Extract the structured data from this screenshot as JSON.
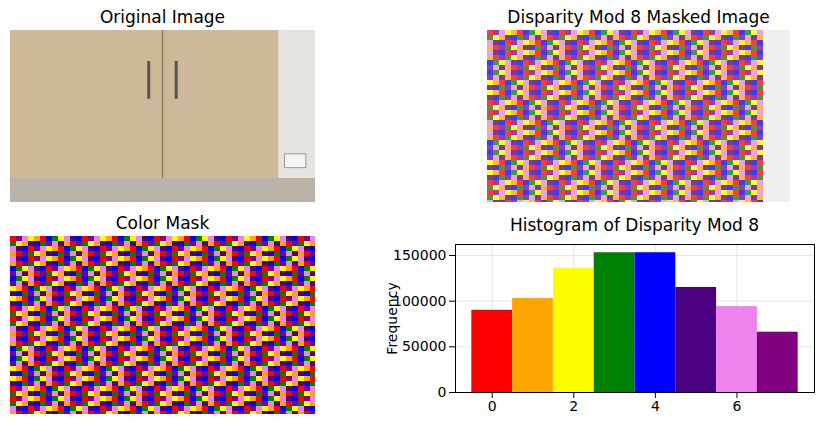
{
  "chart_data": [
    {
      "type": "image",
      "title": "Original Image"
    },
    {
      "type": "image",
      "title": "Disparity Mod 8 Masked Image"
    },
    {
      "type": "image",
      "title": "Color Mask"
    },
    {
      "type": "histogram",
      "title": "Histogram of Disparity Mod 8",
      "ylabel": "Frequency",
      "bins": [
        -0.5,
        0.5,
        1.5,
        2.5,
        3.5,
        4.5,
        5.5,
        6.5,
        7.5
      ],
      "values": [
        90000,
        103000,
        136000,
        153000,
        153000,
        115000,
        94000,
        66000
      ],
      "colors": [
        "#ff0000",
        "#ffa500",
        "#ffff00",
        "#008000",
        "#0000ff",
        "#4b0082",
        "#ee82ee",
        "#800080"
      ],
      "xlim": [
        -0.9,
        7.9
      ],
      "xticks": [
        0,
        2,
        4,
        6
      ],
      "ylim": [
        0,
        162000
      ],
      "yticks": [
        0,
        50000,
        100000,
        150000
      ],
      "grid": true
    }
  ]
}
